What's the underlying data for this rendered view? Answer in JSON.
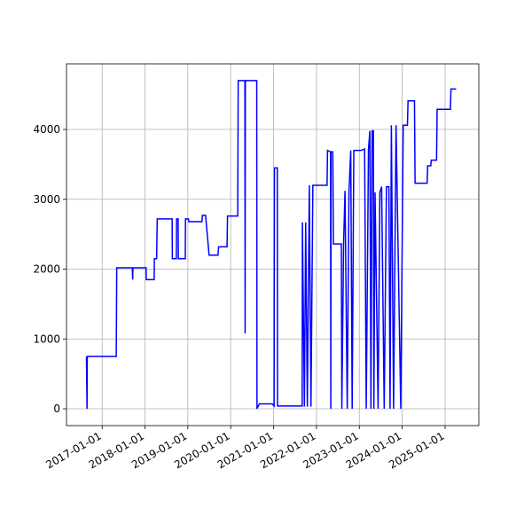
{
  "chart_data": {
    "type": "line",
    "color": "blue",
    "grid": true,
    "xlim": [
      "2016-03-03",
      "2025-10-15"
    ],
    "xticks": [
      "2017-01-01",
      "2018-01-01",
      "2019-01-01",
      "2020-01-01",
      "2021-01-01",
      "2022-01-01",
      "2023-01-01",
      "2024-01-01",
      "2025-01-01"
    ],
    "ylim": [
      -241,
      4940
    ],
    "yticks": [
      0,
      1000,
      2000,
      3000,
      4000
    ],
    "x": [
      "2016-08-20",
      "2016-08-25",
      "2016-08-27",
      "2017-05-01",
      "2017-05-05",
      "2017-09-15",
      "2017-09-18",
      "2017-09-20",
      "2018-01-10",
      "2018-01-12",
      "2018-03-20",
      "2018-03-22",
      "2018-04-10",
      "2018-04-15",
      "2018-08-20",
      "2018-08-22",
      "2018-09-25",
      "2018-09-27",
      "2018-10-10",
      "2018-10-12",
      "2018-12-10",
      "2018-12-12",
      "2019-01-05",
      "2019-01-10",
      "2019-05-01",
      "2019-05-05",
      "2019-06-01",
      "2019-07-01",
      "2019-09-15",
      "2019-09-20",
      "2019-12-01",
      "2019-12-05",
      "2020-03-01",
      "2020-03-05",
      "2020-05-01",
      "2020-05-03",
      "2020-05-05",
      "2020-08-10",
      "2020-08-12",
      "2020-09-01",
      "2020-12-20",
      "2021-01-05",
      "2021-01-08",
      "2021-02-01",
      "2021-02-03",
      "2021-09-01",
      "2021-09-03",
      "2021-09-20",
      "2021-10-01",
      "2021-10-15",
      "2021-11-01",
      "2021-11-15",
      "2021-12-01",
      "2022-04-01",
      "2022-04-05",
      "2022-05-01",
      "2022-05-03",
      "2022-05-05",
      "2022-05-20",
      "2022-05-25",
      "2022-08-01",
      "2022-08-05",
      "2022-08-20",
      "2022-09-01",
      "2022-09-20",
      "2022-10-05",
      "2022-10-20",
      "2022-11-01",
      "2022-11-15",
      "2023-01-15",
      "2023-02-15",
      "2023-03-01",
      "2023-03-20",
      "2023-04-01",
      "2023-04-10",
      "2023-04-20",
      "2023-05-01",
      "2023-05-05",
      "2023-05-15",
      "2023-06-10",
      "2023-06-25",
      "2023-07-10",
      "2023-08-01",
      "2023-08-20",
      "2023-09-10",
      "2023-09-20",
      "2023-10-01",
      "2023-10-20",
      "2023-11-10",
      "2023-12-20",
      "2024-01-10",
      "2024-02-15",
      "2024-02-20",
      "2024-04-15",
      "2024-04-20",
      "2024-08-01",
      "2024-08-05",
      "2024-09-01",
      "2024-09-05",
      "2024-10-20",
      "2024-10-25",
      "2025-02-15",
      "2025-02-20",
      "2025-04-05"
    ],
    "values": [
      750,
      0,
      750,
      750,
      2020,
      2020,
      1850,
      2020,
      2020,
      1850,
      1850,
      2150,
      2150,
      2720,
      2720,
      2150,
      2150,
      2720,
      2720,
      2150,
      2150,
      2720,
      2720,
      2680,
      2680,
      2770,
      2770,
      2200,
      2200,
      2320,
      2320,
      2760,
      2760,
      4700,
      4700,
      1080,
      4700,
      4700,
      0,
      70,
      70,
      40,
      3450,
      3450,
      40,
      40,
      2670,
      30,
      2670,
      30,
      3200,
      30,
      3200,
      3200,
      3700,
      3680,
      0,
      3680,
      3680,
      2360,
      2360,
      0,
      2360,
      3120,
      0,
      3120,
      3700,
      0,
      3700,
      3700,
      3720,
      0,
      3720,
      3980,
      0,
      3980,
      3980,
      0,
      3100,
      0,
      3100,
      3180,
      0,
      3180,
      3180,
      0,
      4060,
      0,
      4060,
      0,
      4060,
      4060,
      4410,
      4410,
      3230,
      3230,
      3480,
      3480,
      3560,
      3560,
      4290,
      4290,
      4580,
      4580
    ]
  }
}
